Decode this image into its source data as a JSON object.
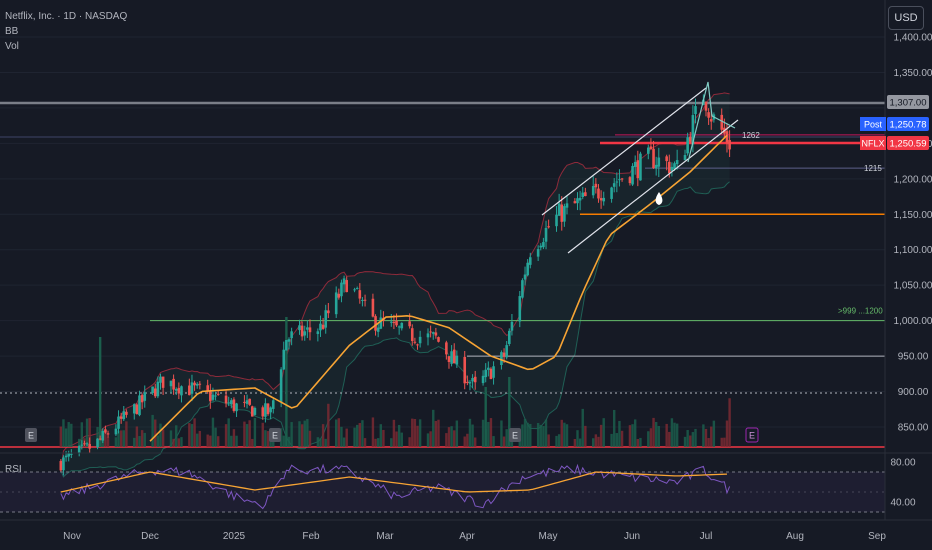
{
  "header": {
    "symbol_line": "Netflix, Inc. · 1D · NASDAQ",
    "indicators": [
      "BB",
      "Vol"
    ],
    "currency_button": "USD"
  },
  "rsi_label": "RSI",
  "price_tags": [
    {
      "label": "",
      "value": "1,307.00",
      "bg": "#9598a1",
      "fg": "#131722",
      "price": 1307
    },
    {
      "label": "Post",
      "value": "1,250.78",
      "bg": "#2962ff",
      "fg": "#ffffff",
      "price": 1250.78
    },
    {
      "label": "NFLX",
      "value": "1,250.59",
      "bg": "#f23645",
      "fg": "#ffffff",
      "price": 1250.59
    }
  ],
  "level_labels": [
    {
      "text": "1262",
      "price": 1262
    },
    {
      "text": "1215",
      "price": 1215
    },
    {
      "text": ">999 ...1200",
      "price": 1000
    }
  ],
  "earnings_markers": [
    "E",
    "E",
    "E",
    "E",
    "E"
  ],
  "colors": {
    "bull": "#26a69a",
    "bear": "#ef5350",
    "ma": "#f7a434",
    "bb": "#8e2a3a",
    "rsi": "#7e57c2",
    "rsi_ma": "#f7a434",
    "bg": "#161a25"
  },
  "chart_data": [
    {
      "type": "candlestick",
      "title": "Netflix, Inc. · 1D · NASDAQ",
      "x_ticks": [
        "Nov",
        "Dec",
        "2025",
        "Feb",
        "Mar",
        "Apr",
        "May",
        "Jun",
        "Jul",
        "Aug",
        "Sep"
      ],
      "y_ticks": [
        850,
        900,
        950,
        1000,
        1050,
        1100,
        1150,
        1200,
        1250,
        1300,
        1350,
        1400
      ],
      "y_tick_labels": [
        "850.00",
        "900.00",
        "950.00",
        "1,000.00",
        "1,050.00",
        "1,100.00",
        "1,150.00",
        "1,200.00",
        "1,250.00",
        "1,300.00",
        "1,350.00",
        "1,400.00"
      ],
      "ylim": [
        825,
        1415
      ],
      "price_path": [
        {
          "date": "2024-10-28",
          "close": 800
        },
        {
          "date": "2024-11-10",
          "close": 825
        },
        {
          "date": "2024-11-25",
          "close": 875
        },
        {
          "date": "2024-12-06",
          "close": 915
        },
        {
          "date": "2024-12-20",
          "close": 900
        },
        {
          "date": "2025-01-02",
          "close": 880
        },
        {
          "date": "2025-01-16",
          "close": 870
        },
        {
          "date": "2025-01-22",
          "close": 975
        },
        {
          "date": "2025-02-04",
          "close": 990
        },
        {
          "date": "2025-02-14",
          "close": 1055
        },
        {
          "date": "2025-02-24",
          "close": 1000
        },
        {
          "date": "2025-03-10",
          "close": 980
        },
        {
          "date": "2025-03-20",
          "close": 975
        },
        {
          "date": "2025-04-04",
          "close": 905
        },
        {
          "date": "2025-04-15",
          "close": 950
        },
        {
          "date": "2025-04-25",
          "close": 1100
        },
        {
          "date": "2025-05-06",
          "close": 1150
        },
        {
          "date": "2025-05-20",
          "close": 1180
        },
        {
          "date": "2025-06-02",
          "close": 1210
        },
        {
          "date": "2025-06-10",
          "close": 1230
        },
        {
          "date": "2025-06-20",
          "close": 1215
        },
        {
          "date": "2025-06-30",
          "close": 1320
        },
        {
          "date": "2025-07-03",
          "close": 1290
        },
        {
          "date": "2025-07-10",
          "close": 1250.59
        }
      ],
      "moving_average": [
        {
          "date": "2024-12-01",
          "value": 830
        },
        {
          "date": "2024-12-20",
          "value": 900
        },
        {
          "date": "2025-01-10",
          "value": 905
        },
        {
          "date": "2025-01-25",
          "value": 875
        },
        {
          "date": "2025-02-15",
          "value": 965
        },
        {
          "date": "2025-03-01",
          "value": 1005
        },
        {
          "date": "2025-03-10",
          "value": 1007
        },
        {
          "date": "2025-03-25",
          "value": 990
        },
        {
          "date": "2025-04-10",
          "value": 950
        },
        {
          "date": "2025-04-25",
          "value": 930
        },
        {
          "date": "2025-05-05",
          "value": 950
        },
        {
          "date": "2025-05-15",
          "value": 1040
        },
        {
          "date": "2025-05-25",
          "value": 1120
        },
        {
          "date": "2025-06-10",
          "value": 1165
        },
        {
          "date": "2025-06-25",
          "value": 1210
        },
        {
          "date": "2025-07-10",
          "value": 1265
        }
      ],
      "horizontal_levels": [
        1307,
        1262,
        1250.59,
        1215,
        1150,
        1000,
        950,
        898
      ]
    },
    {
      "type": "line",
      "title": "RSI",
      "y_ticks": [
        40,
        60,
        80
      ],
      "y_tick_labels": [
        "40.00",
        "",
        "80.00"
      ],
      "ylim": [
        30,
        85
      ],
      "rsi": [
        {
          "date": "2024-10-28",
          "value": 45
        },
        {
          "date": "2024-11-15",
          "value": 60
        },
        {
          "date": "2024-12-01",
          "value": 72
        },
        {
          "date": "2024-12-15",
          "value": 70
        },
        {
          "date": "2025-01-05",
          "value": 42
        },
        {
          "date": "2025-01-14",
          "value": 38
        },
        {
          "date": "2025-01-22",
          "value": 72
        },
        {
          "date": "2025-02-14",
          "value": 72
        },
        {
          "date": "2025-03-05",
          "value": 45
        },
        {
          "date": "2025-03-20",
          "value": 55
        },
        {
          "date": "2025-04-07",
          "value": 38
        },
        {
          "date": "2025-04-22",
          "value": 65
        },
        {
          "date": "2025-05-10",
          "value": 73
        },
        {
          "date": "2025-06-01",
          "value": 65
        },
        {
          "date": "2025-06-20",
          "value": 60
        },
        {
          "date": "2025-06-30",
          "value": 72
        },
        {
          "date": "2025-07-10",
          "value": 52
        }
      ],
      "rsi_ma": [
        {
          "date": "2024-10-28",
          "value": 50
        },
        {
          "date": "2024-12-01",
          "value": 70
        },
        {
          "date": "2025-01-10",
          "value": 52
        },
        {
          "date": "2025-02-15",
          "value": 65
        },
        {
          "date": "2025-04-01",
          "value": 50
        },
        {
          "date": "2025-04-25",
          "value": 52
        },
        {
          "date": "2025-05-20",
          "value": 70
        },
        {
          "date": "2025-06-20",
          "value": 66
        },
        {
          "date": "2025-07-10",
          "value": 68
        }
      ]
    }
  ]
}
